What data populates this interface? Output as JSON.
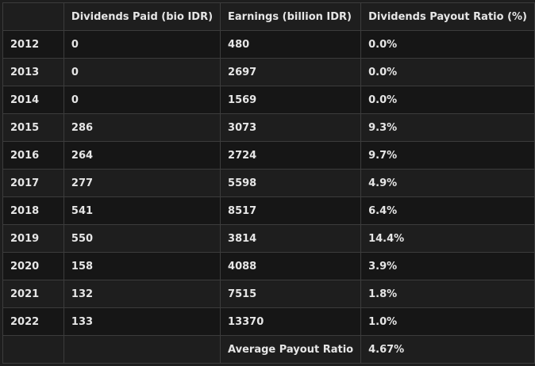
{
  "table": {
    "headers": [
      "",
      "Dividends Paid (bio IDR)",
      "Earnings (billion IDR)",
      "Dividends Payout Ratio (%)"
    ],
    "rows": [
      [
        "2012",
        "0",
        "480",
        "0.0%"
      ],
      [
        "2013",
        "0",
        "2697",
        "0.0%"
      ],
      [
        "2014",
        "0",
        "1569",
        "0.0%"
      ],
      [
        "2015",
        "286",
        "3073",
        "9.3%"
      ],
      [
        "2016",
        "264",
        "2724",
        "9.7%"
      ],
      [
        "2017",
        "277",
        "5598",
        "4.9%"
      ],
      [
        "2018",
        "541",
        "8517",
        "6.4%"
      ],
      [
        "2019",
        "550",
        "3814",
        "14.4%"
      ],
      [
        "2020",
        "158",
        "4088",
        "3.9%"
      ],
      [
        "2021",
        "132",
        "7515",
        "1.8%"
      ],
      [
        "2022",
        "133",
        "13370",
        "1.0%"
      ],
      [
        "",
        "",
        "Average Payout Ratio",
        "4.67%"
      ]
    ]
  }
}
